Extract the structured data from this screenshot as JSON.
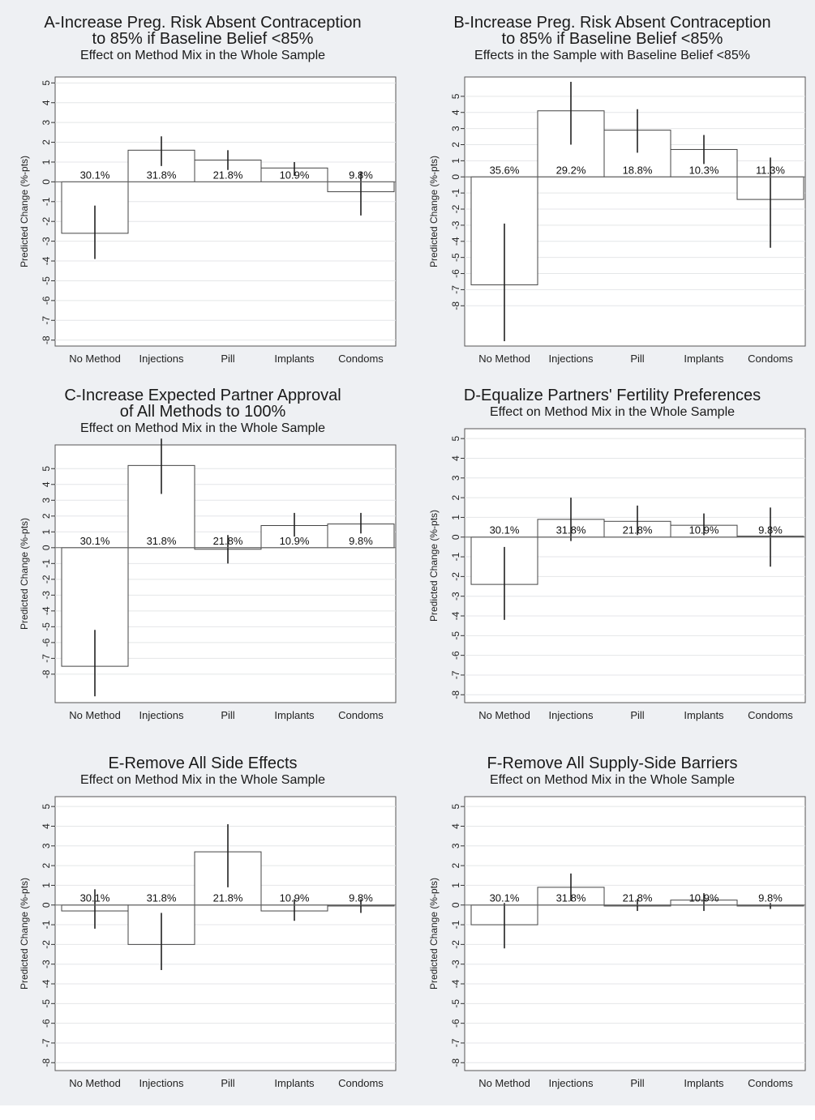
{
  "chart_data": [
    {
      "type": "bar",
      "title_lines": [
        "A-Increase Preg. Risk Absent Contraception",
        "to 85% if Baseline Belief <85%"
      ],
      "subtitle": "Effect on Method Mix in the Whole Sample",
      "ylabel": "Predicted Change (%-pts)",
      "ylim": [
        -8.3,
        5.3
      ],
      "yticks": [
        -8,
        -7,
        -6,
        -5,
        -4,
        -3,
        -2,
        -1,
        0,
        1,
        2,
        3,
        4,
        5
      ],
      "categories": [
        "No Method",
        "Injections",
        "Pill",
        "Implants",
        "Condoms"
      ],
      "values": [
        -2.6,
        1.6,
        1.1,
        0.7,
        -0.5
      ],
      "ci_low": [
        -3.9,
        0.8,
        0.6,
        0.3,
        -1.7
      ],
      "ci_high": [
        -1.2,
        2.3,
        1.6,
        1.0,
        0.5
      ],
      "shares": [
        "30.1%",
        "31.8%",
        "21.8%",
        "10.9%",
        "9.8%"
      ],
      "grid": true
    },
    {
      "type": "bar",
      "title_lines": [
        "B-Increase Preg. Risk Absent Contraception",
        "to 85% if Baseline Belief <85%"
      ],
      "subtitle": "Effects in the Sample with Baseline Belief <85%",
      "ylabel": "Predicted Change (%-pts)",
      "ylim": [
        -10.5,
        6.2
      ],
      "yticks": [
        -8,
        -7,
        -6,
        -5,
        -4,
        -3,
        -2,
        -1,
        0,
        1,
        2,
        3,
        4,
        5
      ],
      "categories": [
        "No Method",
        "Injections",
        "Pill",
        "Implants",
        "Condoms"
      ],
      "values": [
        -6.7,
        4.1,
        2.9,
        1.7,
        -1.4
      ],
      "ci_low": [
        -10.2,
        2.0,
        1.5,
        0.8,
        -4.4
      ],
      "ci_high": [
        -2.9,
        5.9,
        4.2,
        2.6,
        1.2
      ],
      "shares": [
        "35.6%",
        "29.2%",
        "18.8%",
        "10.3%",
        "11.3%"
      ],
      "grid": true
    },
    {
      "type": "bar",
      "title_lines": [
        "C-Increase Expected Partner Approval",
        "of All Methods to 100%"
      ],
      "subtitle": "Effect on Method Mix in the Whole Sample",
      "ylabel": "Predicted Change (%-pts)",
      "ylim": [
        -9.8,
        6.5
      ],
      "yticks": [
        -8,
        -7,
        -6,
        -5,
        -4,
        -3,
        -2,
        -1,
        0,
        1,
        2,
        3,
        4,
        5
      ],
      "categories": [
        "No Method",
        "Injections",
        "Pill",
        "Implants",
        "Condoms"
      ],
      "values": [
        -7.5,
        5.2,
        -0.1,
        1.4,
        1.5
      ],
      "ci_low": [
        -9.4,
        3.4,
        -1.0,
        0.7,
        0.9
      ],
      "ci_high": [
        -5.2,
        6.9,
        0.8,
        2.2,
        2.2
      ],
      "shares": [
        "30.1%",
        "31.8%",
        "21.8%",
        "10.9%",
        "9.8%"
      ],
      "grid": true
    },
    {
      "type": "bar",
      "title_lines": [
        "D-Equalize Partners' Fertility Preferences"
      ],
      "subtitle": "Effect on Method Mix in the Whole Sample",
      "ylabel": "Predicted Change (%-pts)",
      "ylim": [
        -8.4,
        5.5
      ],
      "yticks": [
        -8,
        -7,
        -6,
        -5,
        -4,
        -3,
        -2,
        -1,
        0,
        1,
        2,
        3,
        4,
        5
      ],
      "categories": [
        "No Method",
        "Injections",
        "Pill",
        "Implants",
        "Condoms"
      ],
      "values": [
        -2.4,
        0.9,
        0.8,
        0.6,
        0.05
      ],
      "ci_low": [
        -4.2,
        -0.2,
        0.1,
        0.1,
        -1.5
      ],
      "ci_high": [
        -0.5,
        2.0,
        1.6,
        1.2,
        1.5
      ],
      "shares": [
        "30.1%",
        "31.8%",
        "21.8%",
        "10.9%",
        "9.8%"
      ],
      "grid": true
    },
    {
      "type": "bar",
      "title_lines": [
        "E-Remove All Side Effects"
      ],
      "subtitle": "Effect on Method Mix in the Whole Sample",
      "ylabel": "Predicted Change (%-pts)",
      "ylim": [
        -8.4,
        5.5
      ],
      "yticks": [
        -8,
        -7,
        -6,
        -5,
        -4,
        -3,
        -2,
        -1,
        0,
        1,
        2,
        3,
        4,
        5
      ],
      "categories": [
        "No Method",
        "Injections",
        "Pill",
        "Implants",
        "Condoms"
      ],
      "values": [
        -0.3,
        -2.0,
        2.7,
        -0.3,
        -0.05
      ],
      "ci_low": [
        -1.2,
        -3.3,
        0.9,
        -0.8,
        -0.4
      ],
      "ci_high": [
        0.8,
        -0.4,
        4.1,
        0.3,
        0.3
      ],
      "shares": [
        "30.1%",
        "31.8%",
        "21.8%",
        "10.9%",
        "9.8%"
      ],
      "grid": true
    },
    {
      "type": "bar",
      "title_lines": [
        "F-Remove All Supply-Side Barriers"
      ],
      "subtitle": "Effect on Method Mix in the Whole Sample",
      "ylabel": "Predicted Change (%-pts)",
      "ylim": [
        -8.4,
        5.5
      ],
      "yticks": [
        -8,
        -7,
        -6,
        -5,
        -4,
        -3,
        -2,
        -1,
        0,
        1,
        2,
        3,
        4,
        5
      ],
      "categories": [
        "No Method",
        "Injections",
        "Pill",
        "Implants",
        "Condoms"
      ],
      "values": [
        -1.0,
        0.9,
        -0.05,
        0.25,
        -0.05
      ],
      "ci_low": [
        -2.2,
        0.2,
        -0.3,
        -0.3,
        -0.2
      ],
      "ci_high": [
        0.1,
        1.6,
        0.3,
        0.6,
        0.1
      ],
      "shares": [
        "30.1%",
        "31.8%",
        "21.8%",
        "10.9%",
        "9.8%"
      ],
      "grid": true
    }
  ]
}
